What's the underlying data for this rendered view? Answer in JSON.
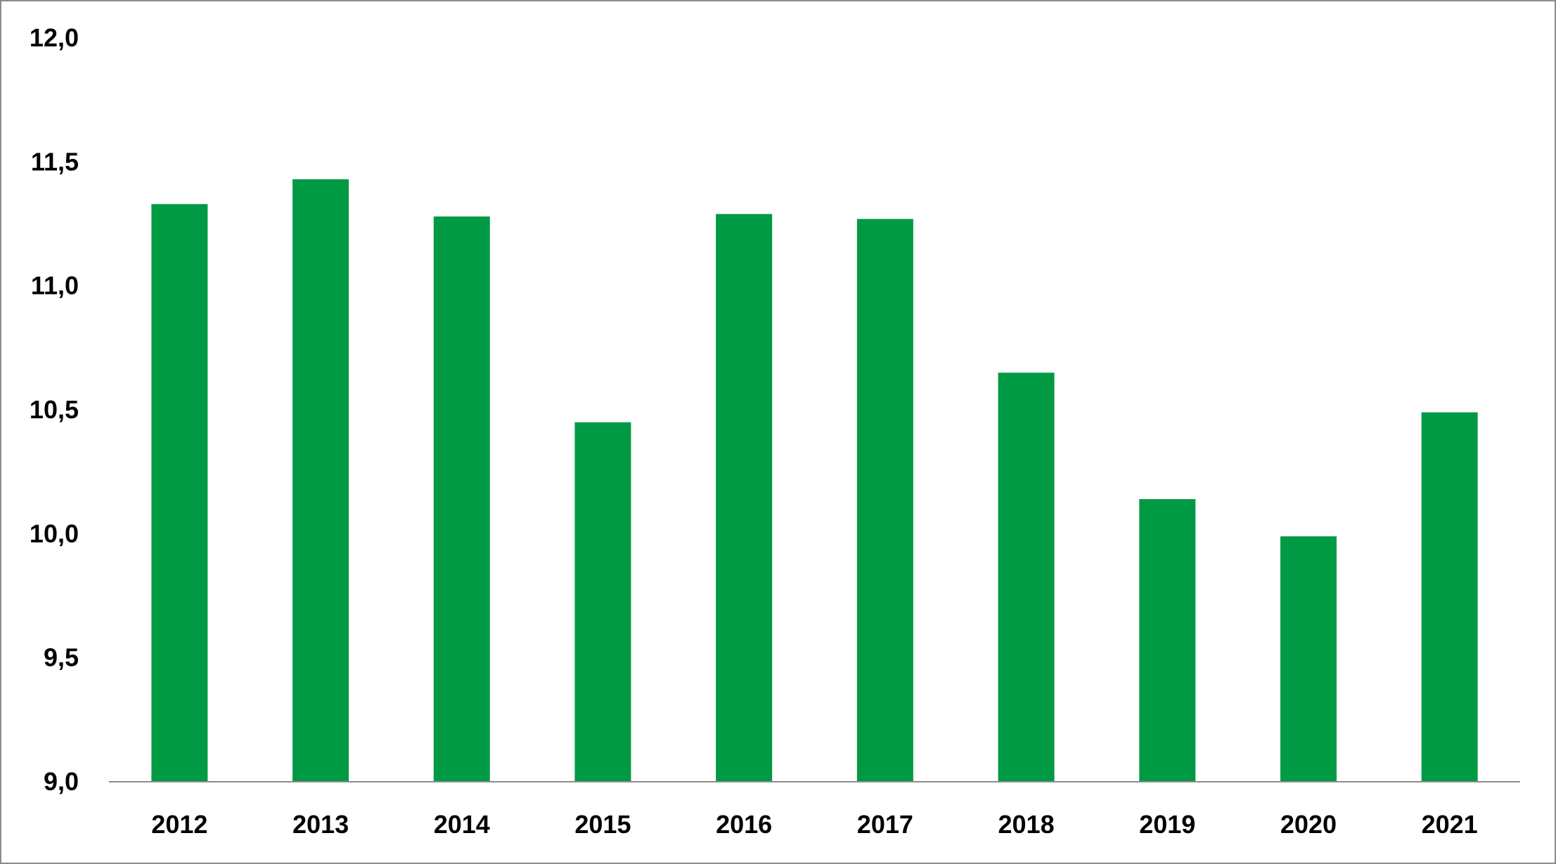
{
  "chart_data": {
    "type": "bar",
    "title": "",
    "xlabel": "",
    "ylabel": "",
    "categories": [
      "2012",
      "2013",
      "2014",
      "2015",
      "2016",
      "2017",
      "2018",
      "2019",
      "2020",
      "2021"
    ],
    "values": [
      11.33,
      11.43,
      11.28,
      10.45,
      11.29,
      11.27,
      10.65,
      10.14,
      9.99,
      10.49
    ],
    "ylim": [
      9.0,
      12.0
    ],
    "yticks": [
      9.0,
      9.5,
      10.0,
      10.5,
      11.0,
      11.5,
      12.0
    ],
    "ytick_labels": [
      "9,0",
      "9,5",
      "10,0",
      "10,5",
      "11,0",
      "11,5",
      "12,0"
    ],
    "grid": false,
    "legend": "none",
    "colors": {
      "bar": "#009a44",
      "axis": "#8c8c8c",
      "border": "#8c8c8c"
    }
  }
}
